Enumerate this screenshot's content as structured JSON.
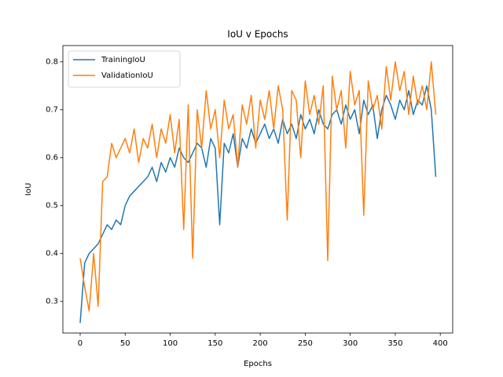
{
  "chart_data": {
    "type": "line",
    "title": "IoU v Epochs",
    "x_label": "Epochs",
    "y_label": "IoU",
    "x": [
      0,
      5,
      10,
      15,
      20,
      25,
      30,
      35,
      40,
      45,
      50,
      55,
      60,
      65,
      70,
      75,
      80,
      85,
      90,
      95,
      100,
      105,
      110,
      115,
      120,
      125,
      130,
      135,
      140,
      145,
      150,
      155,
      160,
      165,
      170,
      175,
      180,
      185,
      190,
      195,
      200,
      205,
      210,
      215,
      220,
      225,
      230,
      235,
      240,
      245,
      250,
      255,
      260,
      265,
      270,
      275,
      280,
      285,
      290,
      295,
      300,
      305,
      310,
      315,
      320,
      325,
      330,
      335,
      340,
      345,
      350,
      355,
      360,
      365,
      370,
      375,
      380,
      385,
      390,
      395
    ],
    "series": [
      {
        "name": "TrainingIoU",
        "color": "#1f77b4",
        "values": [
          0.255,
          0.38,
          0.4,
          0.41,
          0.42,
          0.44,
          0.46,
          0.45,
          0.47,
          0.46,
          0.5,
          0.52,
          0.53,
          0.54,
          0.55,
          0.56,
          0.58,
          0.55,
          0.59,
          0.57,
          0.6,
          0.58,
          0.62,
          0.6,
          0.59,
          0.61,
          0.63,
          0.62,
          0.58,
          0.64,
          0.62,
          0.46,
          0.63,
          0.61,
          0.65,
          0.58,
          0.64,
          0.62,
          0.66,
          0.63,
          0.65,
          0.67,
          0.64,
          0.66,
          0.63,
          0.68,
          0.65,
          0.67,
          0.64,
          0.69,
          0.66,
          0.68,
          0.65,
          0.7,
          0.67,
          0.66,
          0.69,
          0.7,
          0.67,
          0.71,
          0.68,
          0.7,
          0.65,
          0.72,
          0.69,
          0.71,
          0.64,
          0.7,
          0.73,
          0.71,
          0.68,
          0.72,
          0.7,
          0.74,
          0.69,
          0.72,
          0.71,
          0.75,
          0.7,
          0.56
        ]
      },
      {
        "name": "ValidationIoU",
        "color": "#ff7f0e",
        "values": [
          0.39,
          0.33,
          0.28,
          0.4,
          0.29,
          0.55,
          0.56,
          0.63,
          0.6,
          0.62,
          0.64,
          0.61,
          0.66,
          0.59,
          0.64,
          0.62,
          0.67,
          0.6,
          0.66,
          0.63,
          0.69,
          0.61,
          0.68,
          0.45,
          0.71,
          0.39,
          0.7,
          0.62,
          0.74,
          0.66,
          0.7,
          0.6,
          0.72,
          0.66,
          0.69,
          0.58,
          0.71,
          0.67,
          0.73,
          0.62,
          0.72,
          0.68,
          0.74,
          0.66,
          0.75,
          0.7,
          0.47,
          0.74,
          0.72,
          0.6,
          0.76,
          0.69,
          0.73,
          0.67,
          0.75,
          0.385,
          0.77,
          0.7,
          0.74,
          0.62,
          0.78,
          0.71,
          0.74,
          0.48,
          0.76,
          0.7,
          0.73,
          0.66,
          0.79,
          0.72,
          0.8,
          0.74,
          0.78,
          0.69,
          0.77,
          0.71,
          0.75,
          0.7,
          0.8,
          0.69
        ]
      }
    ],
    "xlim": [
      -19.2,
      413.8
    ],
    "ylim": [
      0.234,
      0.834
    ],
    "xticks": [
      0,
      50,
      100,
      150,
      200,
      250,
      300,
      350,
      400
    ],
    "yticks": [
      0.3,
      0.4,
      0.5,
      0.6,
      0.7,
      0.8
    ],
    "legend": "upper left"
  }
}
